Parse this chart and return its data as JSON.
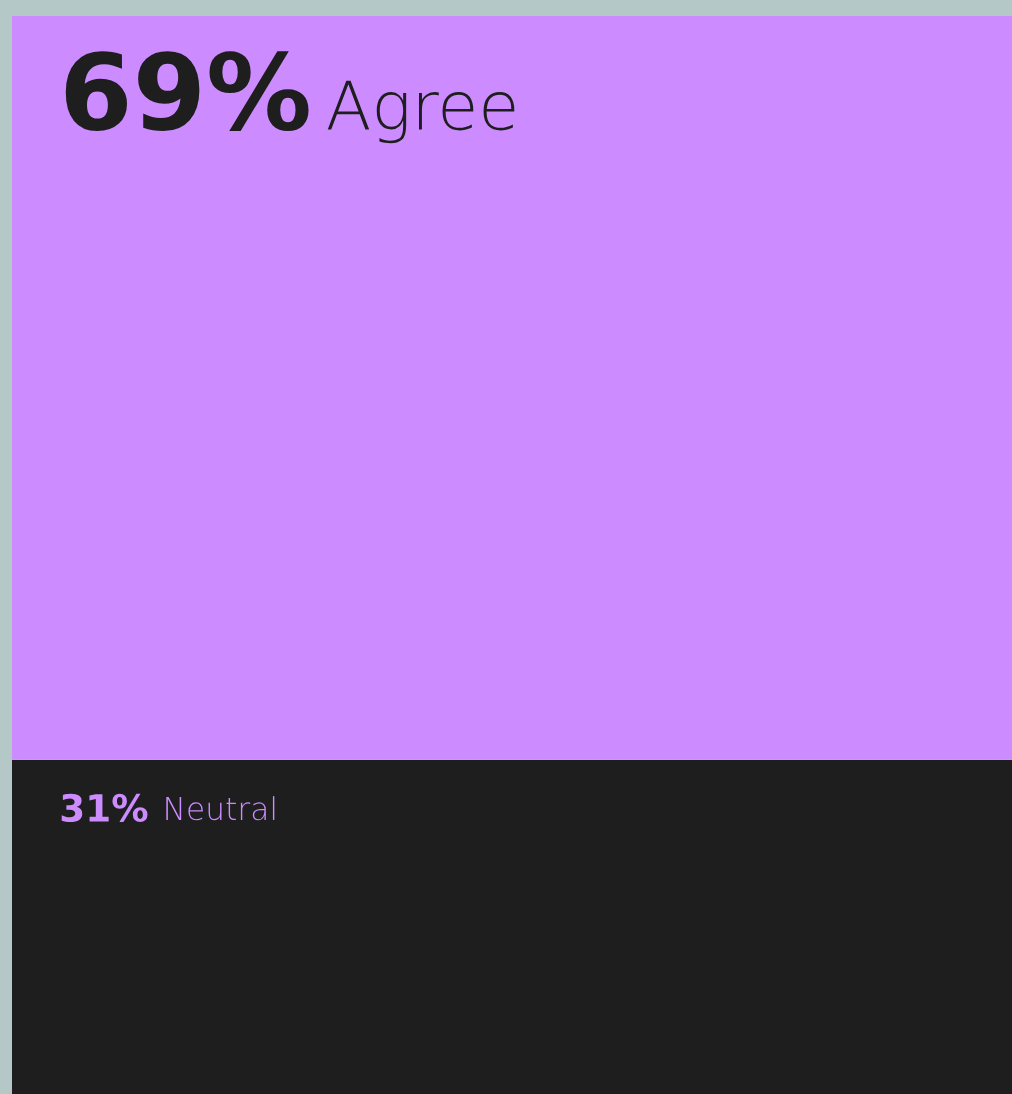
{
  "chart_data": {
    "type": "bar",
    "stacked": true,
    "categories": [
      null
    ],
    "series": [
      {
        "name": "Neutral",
        "color": "#1e1e1e",
        "values": [
          31
        ],
        "value_labels": [
          "31%"
        ]
      },
      {
        "name": "Agree",
        "color": "#cc8bff",
        "values": [
          69
        ],
        "value_labels": [
          "69%"
        ]
      }
    ]
  }
}
